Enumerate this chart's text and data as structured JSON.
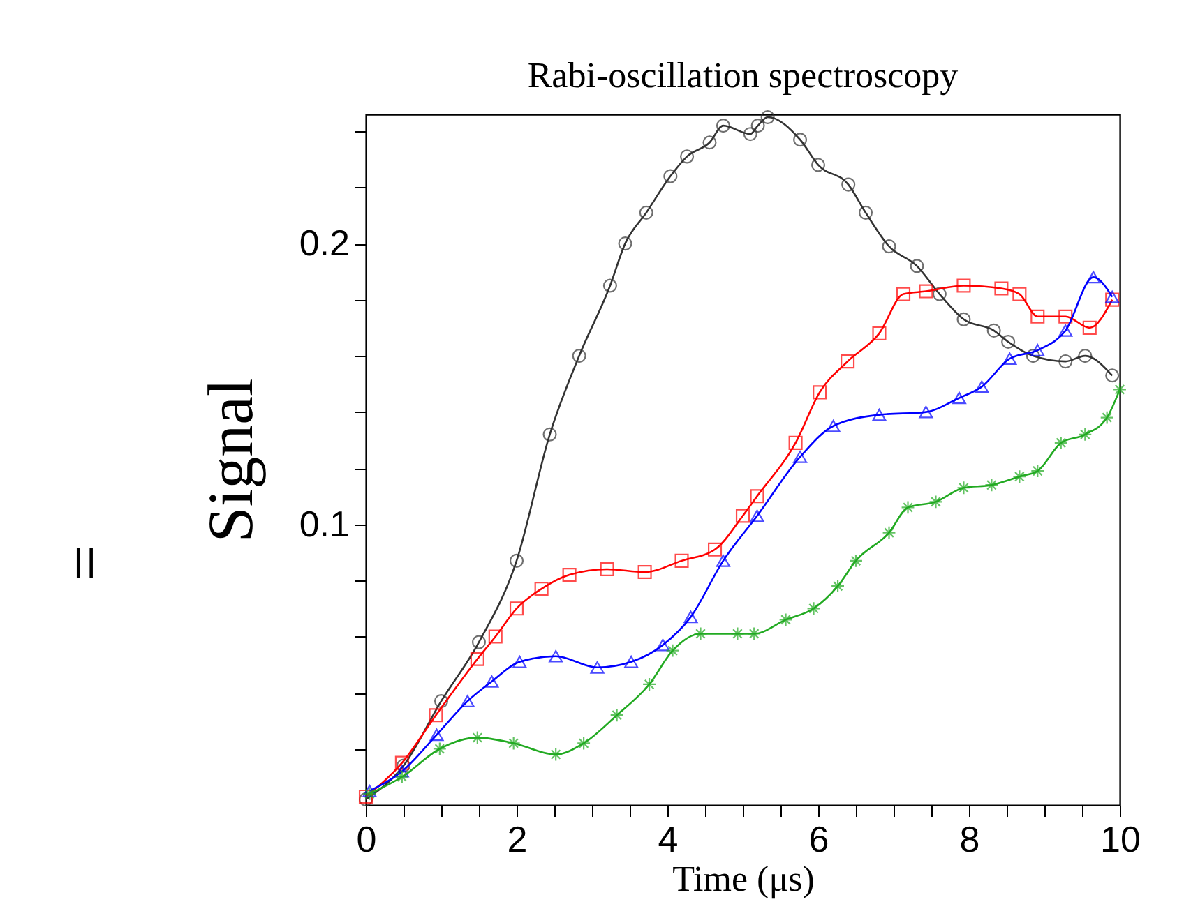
{
  "chart_data": {
    "type": "line",
    "title": "Rabi-oscillation spectroscopy",
    "xlabel": "Time (μs)",
    "ylabel": "Signal",
    "annotations": [
      "="
    ],
    "xlim": [
      0,
      10
    ],
    "ylim": [
      0,
      0.246
    ],
    "xticks": [
      0,
      {
        "value": 0.5,
        "label": null
      },
      {
        "value": 1,
        "label": null
      },
      {
        "value": 1.5,
        "label": null
      },
      2,
      {
        "value": 2.5,
        "label": null
      },
      {
        "value": 3,
        "label": null
      },
      {
        "value": 3.5,
        "label": null
      },
      4,
      {
        "value": 4.5,
        "label": null
      },
      {
        "value": 5,
        "label": null
      },
      {
        "value": 5.5,
        "label": null
      },
      6,
      {
        "value": 6.5,
        "label": null
      },
      {
        "value": 7,
        "label": null
      },
      {
        "value": 7.5,
        "label": null
      },
      8,
      {
        "value": 8.5,
        "label": null
      },
      {
        "value": 9,
        "label": null
      },
      {
        "value": 9.5,
        "label": null
      },
      10
    ],
    "yticks": [
      {
        "value": 0.02,
        "label": null
      },
      {
        "value": 0.04,
        "label": null
      },
      {
        "value": 0.06,
        "label": null
      },
      {
        "value": 0.08,
        "label": null
      },
      0.1,
      {
        "value": 0.12,
        "label": null
      },
      {
        "value": 0.14,
        "label": null
      },
      {
        "value": 0.16,
        "label": null
      },
      {
        "value": 0.18,
        "label": null
      },
      0.2,
      {
        "value": 0.22,
        "label": null
      },
      {
        "value": 0.24,
        "label": null
      }
    ],
    "grid": false,
    "line_style": "solid",
    "series": [
      {
        "color": "#333333",
        "marker": "circle",
        "x": [
          0,
          0.5,
          1.0,
          1.5,
          2.0,
          2.44,
          2.83,
          3.24,
          3.44,
          3.72,
          4.04,
          4.26,
          4.56,
          4.74,
          5.1,
          5.2,
          5.33,
          5.76,
          6.0,
          6.4,
          6.63,
          6.94,
          7.31,
          7.61,
          7.93,
          8.33,
          8.52,
          8.85,
          9.28,
          9.54,
          9.9
        ],
        "values": [
          0.002,
          0.014,
          0.037,
          0.058,
          0.087,
          0.132,
          0.16,
          0.185,
          0.2,
          0.211,
          0.224,
          0.231,
          0.236,
          0.242,
          0.239,
          0.242,
          0.245,
          0.237,
          0.228,
          0.221,
          0.211,
          0.199,
          0.192,
          0.182,
          0.173,
          0.169,
          0.165,
          0.16,
          0.158,
          0.16,
          0.153
        ]
      },
      {
        "color": "#ff0000",
        "marker": "square",
        "x": [
          0,
          0.48,
          0.93,
          1.48,
          1.72,
          2.0,
          2.33,
          2.7,
          3.2,
          3.7,
          4.19,
          4.63,
          5.0,
          5.19,
          5.7,
          6.02,
          6.39,
          6.81,
          7.13,
          7.43,
          7.93,
          8.43,
          8.67,
          8.91,
          9.28,
          9.6,
          9.9
        ],
        "values": [
          0.003,
          0.015,
          0.032,
          0.052,
          0.06,
          0.07,
          0.077,
          0.082,
          0.084,
          0.083,
          0.087,
          0.091,
          0.103,
          0.11,
          0.129,
          0.147,
          0.158,
          0.168,
          0.182,
          0.183,
          0.185,
          0.184,
          0.182,
          0.174,
          0.174,
          0.17,
          0.18
        ]
      },
      {
        "color": "#0000ff",
        "marker": "triangle",
        "x": [
          0.05,
          0.48,
          0.94,
          1.35,
          1.67,
          2.04,
          2.52,
          3.07,
          3.52,
          3.94,
          4.31,
          4.74,
          5.19,
          5.76,
          6.2,
          6.81,
          7.43,
          7.87,
          8.17,
          8.54,
          8.91,
          9.28,
          9.65,
          9.9
        ],
        "values": [
          0.005,
          0.012,
          0.025,
          0.037,
          0.044,
          0.051,
          0.053,
          0.049,
          0.051,
          0.057,
          0.067,
          0.087,
          0.103,
          0.124,
          0.135,
          0.139,
          0.14,
          0.145,
          0.149,
          0.159,
          0.162,
          0.169,
          0.188,
          0.181
        ]
      },
      {
        "color": "#22aa22",
        "marker": "cross",
        "x": [
          0.05,
          0.48,
          0.98,
          1.48,
          1.96,
          2.52,
          2.89,
          3.33,
          3.76,
          4.07,
          4.44,
          4.93,
          5.15,
          5.57,
          5.94,
          6.26,
          6.5,
          6.94,
          7.19,
          7.56,
          7.93,
          8.3,
          8.67,
          8.91,
          9.22,
          9.54,
          9.83,
          10.0
        ],
        "values": [
          0.004,
          0.01,
          0.02,
          0.024,
          0.022,
          0.018,
          0.022,
          0.032,
          0.043,
          0.055,
          0.061,
          0.061,
          0.061,
          0.066,
          0.07,
          0.078,
          0.087,
          0.097,
          0.106,
          0.108,
          0.113,
          0.114,
          0.117,
          0.119,
          0.129,
          0.132,
          0.138,
          0.148
        ]
      }
    ]
  }
}
